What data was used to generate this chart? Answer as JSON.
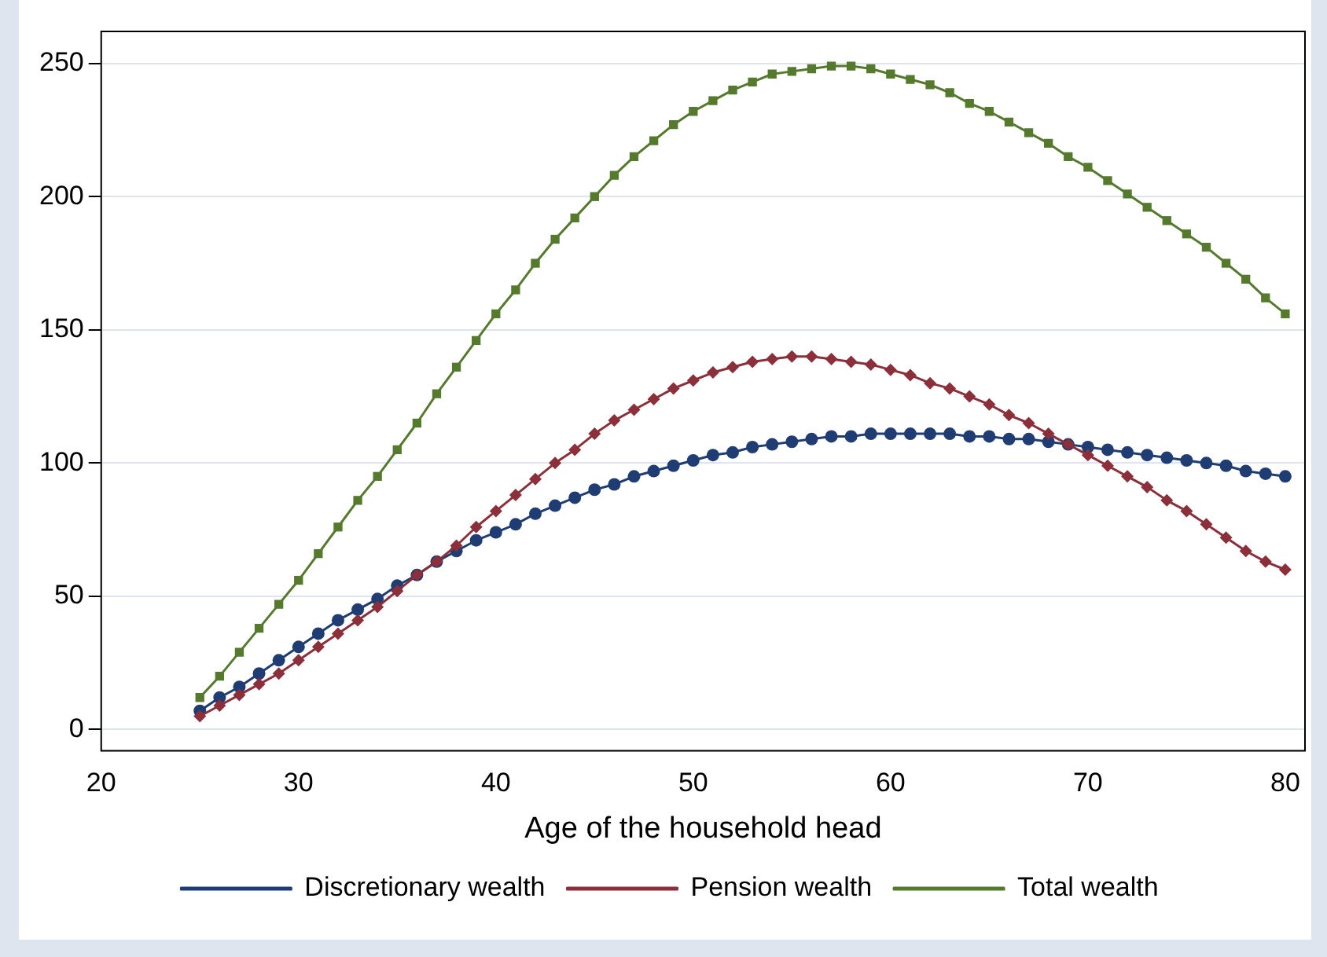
{
  "chart_data": {
    "type": "line",
    "xlabel": "Age of the household head",
    "x": [
      25,
      26,
      27,
      28,
      29,
      30,
      31,
      32,
      33,
      34,
      35,
      36,
      37,
      38,
      39,
      40,
      41,
      42,
      43,
      44,
      45,
      46,
      47,
      48,
      49,
      50,
      51,
      52,
      53,
      54,
      55,
      56,
      57,
      58,
      59,
      60,
      61,
      62,
      63,
      64,
      65,
      66,
      67,
      68,
      69,
      70,
      71,
      72,
      73,
      74,
      75,
      76,
      77,
      78,
      79,
      80
    ],
    "xlim": [
      20,
      81
    ],
    "xticks": [
      20,
      30,
      40,
      50,
      60,
      70,
      80
    ],
    "ylim": [
      -8,
      262
    ],
    "yticks": [
      0,
      50,
      100,
      150,
      200,
      250
    ],
    "grid": "y",
    "legend": "bottom",
    "line_style": "solid",
    "series": [
      {
        "name": "Discretionary wealth",
        "color": "#1f3d73",
        "marker": "circle",
        "values": [
          7,
          12,
          16,
          21,
          26,
          31,
          36,
          41,
          45,
          49,
          54,
          58,
          63,
          67,
          71,
          74,
          77,
          81,
          84,
          87,
          90,
          92,
          95,
          97,
          99,
          101,
          103,
          104,
          106,
          107,
          108,
          109,
          110,
          110,
          111,
          111,
          111,
          111,
          111,
          110,
          110,
          109,
          109,
          108,
          107,
          106,
          105,
          104,
          103,
          102,
          101,
          100,
          99,
          97,
          96,
          95
        ]
      },
      {
        "name": "Pension wealth",
        "color": "#8b2f3a",
        "marker": "diamond",
        "values": [
          5,
          9,
          13,
          17,
          21,
          26,
          31,
          36,
          41,
          46,
          52,
          58,
          63,
          69,
          76,
          82,
          88,
          94,
          100,
          105,
          111,
          116,
          120,
          124,
          128,
          131,
          134,
          136,
          138,
          139,
          140,
          140,
          139,
          138,
          137,
          135,
          133,
          130,
          128,
          125,
          122,
          118,
          115,
          111,
          107,
          103,
          99,
          95,
          91,
          86,
          82,
          77,
          72,
          67,
          63,
          60
        ]
      },
      {
        "name": "Total wealth",
        "color": "#557a2d",
        "marker": "square",
        "values": [
          12,
          20,
          29,
          38,
          47,
          56,
          66,
          76,
          86,
          95,
          105,
          115,
          126,
          136,
          146,
          156,
          165,
          175,
          184,
          192,
          200,
          208,
          215,
          221,
          227,
          232,
          236,
          240,
          243,
          246,
          247,
          248,
          249,
          249,
          248,
          246,
          244,
          242,
          239,
          235,
          232,
          228,
          224,
          220,
          215,
          211,
          206,
          201,
          196,
          191,
          186,
          181,
          175,
          169,
          162,
          156
        ]
      }
    ]
  }
}
